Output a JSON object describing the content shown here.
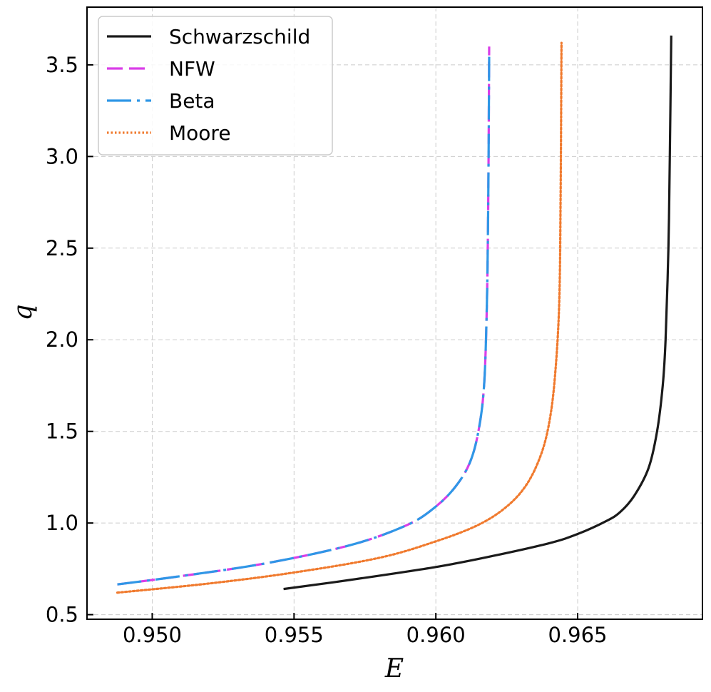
{
  "chart_data": {
    "type": "line",
    "xlabel": "E",
    "ylabel": "q",
    "xlim": [
      0.9477,
      0.9694
    ],
    "ylim": [
      0.475,
      3.815
    ],
    "xticks": [
      0.95,
      0.955,
      0.96,
      0.965
    ],
    "xtick_labels": [
      "0.950",
      "0.955",
      "0.960",
      "0.965"
    ],
    "yticks": [
      0.5,
      1.0,
      1.5,
      2.0,
      2.5,
      3.0,
      3.5
    ],
    "ytick_labels": [
      "0.5",
      "1.0",
      "1.5",
      "2.0",
      "2.5",
      "3.0",
      "3.5"
    ],
    "grid": true,
    "legend_position": "top-left",
    "series": [
      {
        "name": "Schwarzschild",
        "color": "#1a1a1a",
        "style": "solid",
        "x": [
          0.95463,
          0.957,
          0.96,
          0.962,
          0.964,
          0.965,
          0.966,
          0.9665,
          0.967,
          0.9675,
          0.9678,
          0.968,
          0.9681,
          0.9682,
          0.96825,
          0.9683
        ],
        "y": [
          0.64,
          0.69,
          0.76,
          0.82,
          0.89,
          0.94,
          1.01,
          1.06,
          1.15,
          1.3,
          1.5,
          1.75,
          2.0,
          2.5,
          3.0,
          3.66
        ]
      },
      {
        "name": "NFW",
        "color": "#d93ee8",
        "style": "dashed",
        "x": [
          0.94877,
          0.951,
          0.954,
          0.957,
          0.959,
          0.96,
          0.9607,
          0.9612,
          0.9615,
          0.9617,
          0.9618,
          0.96185,
          0.96188
        ],
        "y": [
          0.665,
          0.71,
          0.78,
          0.88,
          0.99,
          1.09,
          1.2,
          1.33,
          1.5,
          1.75,
          2.2,
          2.8,
          3.6
        ]
      },
      {
        "name": "Beta",
        "color": "#2f97e6",
        "style": "longdash",
        "x": [
          0.94877,
          0.951,
          0.954,
          0.957,
          0.959,
          0.96,
          0.9607,
          0.9612,
          0.9615,
          0.9617,
          0.9618,
          0.96185,
          0.96188
        ],
        "y": [
          0.665,
          0.71,
          0.78,
          0.88,
          0.99,
          1.09,
          1.2,
          1.33,
          1.5,
          1.75,
          2.2,
          2.8,
          3.55
        ]
      },
      {
        "name": "Moore",
        "color": "#f07a2e",
        "style": "dotted",
        "x": [
          0.94877,
          0.952,
          0.955,
          0.958,
          0.96,
          0.9615,
          0.9625,
          0.9632,
          0.9637,
          0.964,
          0.9642,
          0.96435,
          0.9644,
          0.96443
        ],
        "y": [
          0.62,
          0.67,
          0.73,
          0.81,
          0.9,
          0.99,
          1.09,
          1.21,
          1.37,
          1.55,
          1.8,
          2.2,
          2.8,
          3.62
        ]
      }
    ]
  }
}
